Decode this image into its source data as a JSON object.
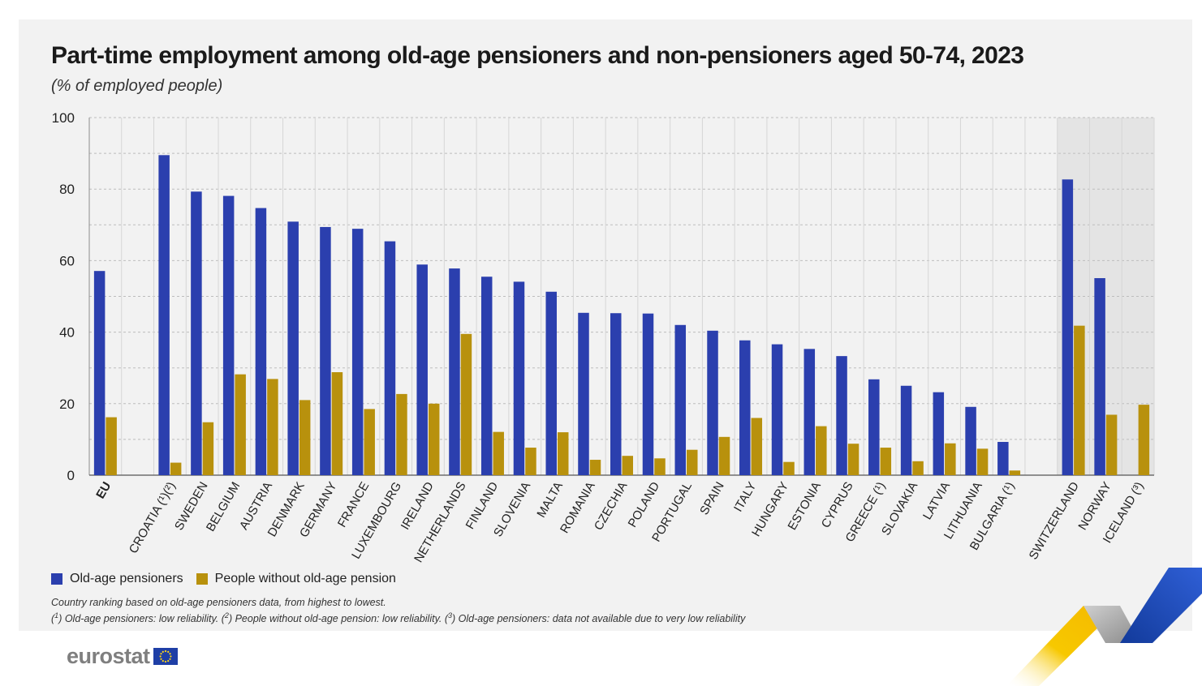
{
  "chart_data": {
    "type": "bar",
    "title": "Part-time employment among old-age pensioners and non-pensioners aged 50-74, 2023",
    "subtitle": "(% of employed people)",
    "xlabel": "",
    "ylabel": "",
    "ylim": [
      0,
      100
    ],
    "yticks": [
      0,
      20,
      40,
      60,
      80,
      100
    ],
    "grid": true,
    "legend_position": "bottom-left",
    "categories": [
      "EU",
      "",
      "CROATIA (¹)(²)",
      "SWEDEN",
      "BELGIUM",
      "AUSTRIA",
      "DENMARK",
      "GERMANY",
      "FRANCE",
      "LUXEMBOURG",
      "IRELAND",
      "NETHERLANDS",
      "FINLAND",
      "SLOVENIA",
      "MALTA",
      "ROMANIA",
      "CZECHIA",
      "POLAND",
      "PORTUGAL",
      "SPAIN",
      "ITALY",
      "HUNGARY",
      "ESTONIA",
      "CYPRUS",
      "GREECE (¹)",
      "SLOVAKIA",
      "LATVIA",
      "LITHUANIA",
      "BULGARIA (¹)",
      "",
      "SWITZERLAND",
      "NORWAY",
      "ICELAND (³)"
    ],
    "shaded_categories": [
      "SWITZERLAND",
      "NORWAY",
      "ICELAND (³)"
    ],
    "series": [
      {
        "name": "Old-age pensioners",
        "color": "#2b3fae",
        "values": [
          57.1,
          null,
          89.5,
          79.3,
          78.1,
          74.7,
          70.9,
          69.4,
          68.9,
          65.4,
          58.9,
          57.8,
          55.5,
          54.1,
          51.3,
          45.4,
          45.3,
          45.2,
          42.0,
          40.4,
          37.7,
          36.6,
          35.3,
          33.3,
          26.8,
          25.0,
          23.2,
          19.1,
          9.3,
          null,
          82.7,
          55.1,
          null
        ]
      },
      {
        "name": "People without old-age pension",
        "color": "#b8910d",
        "values": [
          16.2,
          null,
          3.5,
          14.8,
          28.2,
          26.9,
          21.0,
          28.8,
          18.5,
          22.7,
          20.0,
          39.5,
          12.1,
          7.7,
          12.0,
          4.3,
          5.4,
          4.7,
          7.1,
          10.7,
          16.0,
          3.7,
          13.7,
          8.8,
          7.7,
          3.9,
          8.9,
          7.4,
          1.3,
          null,
          41.8,
          16.9,
          19.7
        ]
      }
    ]
  },
  "legend": {
    "pensioners_label": "Old-age pensioners",
    "non_pensioners_label": "People without old-age pension"
  },
  "notes": {
    "ranking": "Country ranking based on old-age pensioners data, from highest to lowest.",
    "fn1_mark": "1",
    "fn1_text": " Old-age pensioners: low reliability. (",
    "fn2_mark": "2",
    "fn2_text": " People without old-age pension: low reliability. (",
    "fn3_mark": "3",
    "fn3_text": " Old-age pensioners: data not available due to very low reliability"
  },
  "branding": {
    "logo_text": "eurostat"
  },
  "colors": {
    "pensioners": "#2b3fae",
    "non_pensioners": "#b8910d",
    "panel_bg": "#f2f2f2",
    "shade_bg": "#e4e4e4"
  }
}
